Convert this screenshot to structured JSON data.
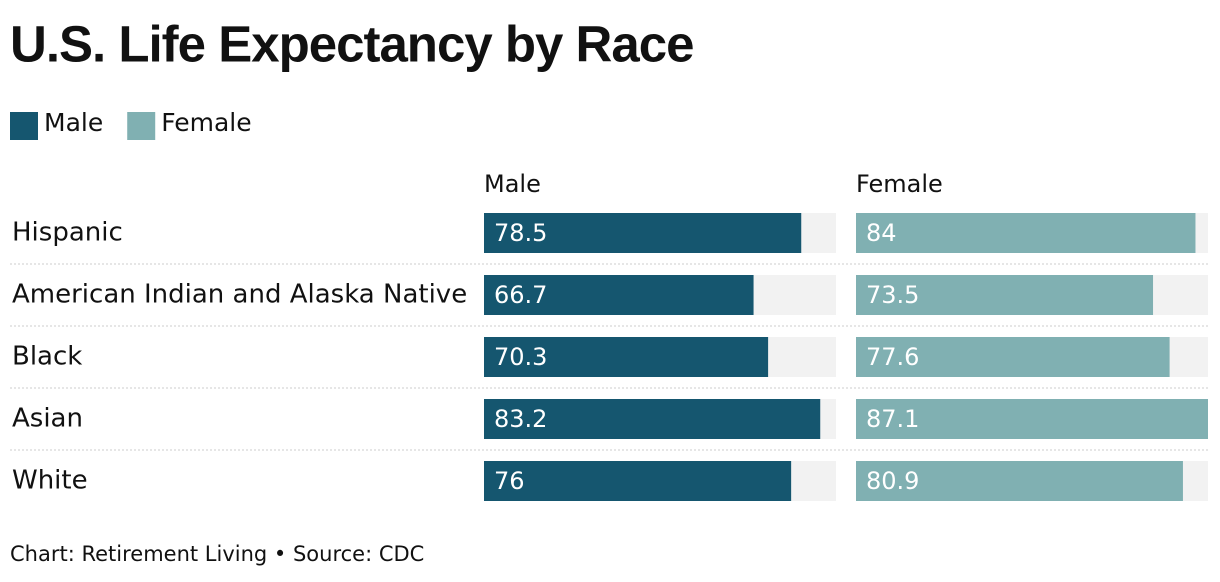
{
  "chart_data": {
    "type": "bar",
    "title": "U.S. Life Expectancy by Race",
    "categories": [
      "Hispanic",
      "American Indian and Alaska Native",
      "Black",
      "Asian",
      "White"
    ],
    "series": [
      {
        "name": "Male",
        "color": "#15566f",
        "values": [
          78.5,
          66.7,
          70.3,
          83.2,
          76
        ]
      },
      {
        "name": "Female",
        "color": "#80b0b2",
        "values": [
          84,
          73.5,
          77.6,
          87.1,
          80.9
        ]
      }
    ],
    "note": "Chart: Retirement Living • Source: CDC"
  }
}
